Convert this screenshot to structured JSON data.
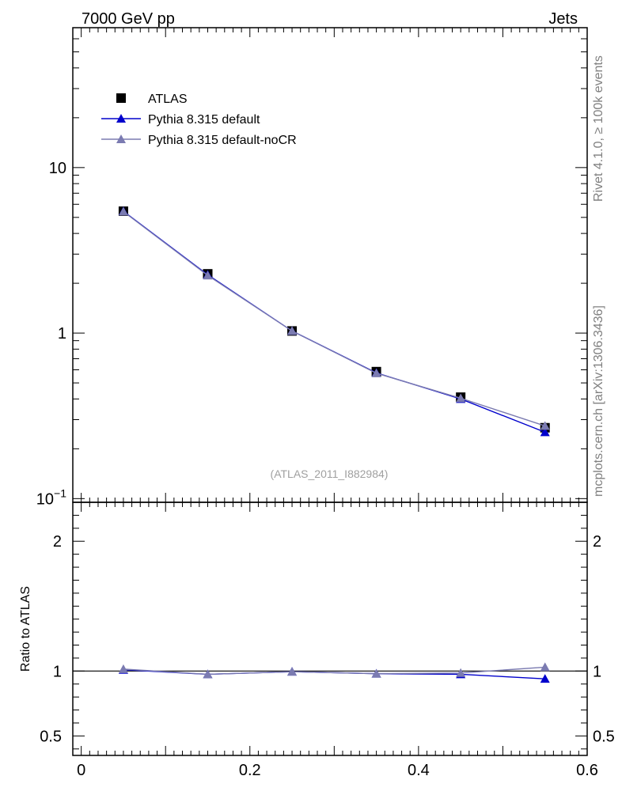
{
  "header": {
    "left": "7000 GeV pp",
    "right": "Jets"
  },
  "side_labels": {
    "rivet": "Rivet 4.1.0, ≥ 100k events",
    "source": "mcplots.cern.ch [arXiv:1306.3436]"
  },
  "watermark": "(ATLAS_2011_I882984)",
  "colors": {
    "atlas": "#000000",
    "default": "#0000cc",
    "noCR": "#7b7bb1",
    "frame": "#000000"
  },
  "chart_data": [
    {
      "type": "line",
      "panel": "main",
      "yscale": "log",
      "xlim": [
        -0.01,
        0.6
      ],
      "ylim": [
        0.095,
        70
      ],
      "x": [
        0.05,
        0.15,
        0.25,
        0.35,
        0.45,
        0.55
      ],
      "xticks": [
        {
          "value": 0,
          "label": "0"
        },
        {
          "value": 0.2,
          "label": "0.2"
        },
        {
          "value": 0.4,
          "label": "0.4"
        },
        {
          "value": 0.6,
          "label": "0.6"
        }
      ],
      "yticks": [
        {
          "value": 0.1,
          "base": "10",
          "exp": "−1"
        },
        {
          "value": 1,
          "base": "1",
          "exp": ""
        },
        {
          "value": 10,
          "base": "10",
          "exp": ""
        }
      ],
      "legend_position": "top-left",
      "series": [
        {
          "name": "ATLAS",
          "marker": "square",
          "values": [
            5.45,
            2.28,
            1.03,
            0.585,
            0.41,
            0.268
          ]
        },
        {
          "name": "Pythia 8.315 default",
          "marker": "triangle",
          "values": [
            5.45,
            2.25,
            1.03,
            0.575,
            0.4,
            0.252
          ]
        },
        {
          "name": "Pythia 8.315 default-noCR",
          "marker": "triangle",
          "values": [
            5.42,
            2.23,
            1.03,
            0.572,
            0.404,
            0.275
          ]
        }
      ]
    },
    {
      "type": "line",
      "panel": "ratio",
      "ylabel": "Ratio to ATLAS",
      "xlim": [
        -0.01,
        0.6
      ],
      "ylim": [
        0.35,
        2.3
      ],
      "x": [
        0.05,
        0.15,
        0.25,
        0.35,
        0.45,
        0.55
      ],
      "yticks": [
        {
          "value": 0.5,
          "label": "0.5"
        },
        {
          "value": 1,
          "label": "1"
        },
        {
          "value": 2,
          "label": "2"
        }
      ],
      "series": [
        {
          "name": "Pythia 8.315 default",
          "values": [
            1.01,
            0.975,
            0.995,
            0.98,
            0.975,
            0.94
          ]
        },
        {
          "name": "Pythia 8.315 default-noCR",
          "values": [
            1.015,
            0.975,
            0.995,
            0.98,
            0.985,
            1.03
          ]
        }
      ]
    }
  ]
}
